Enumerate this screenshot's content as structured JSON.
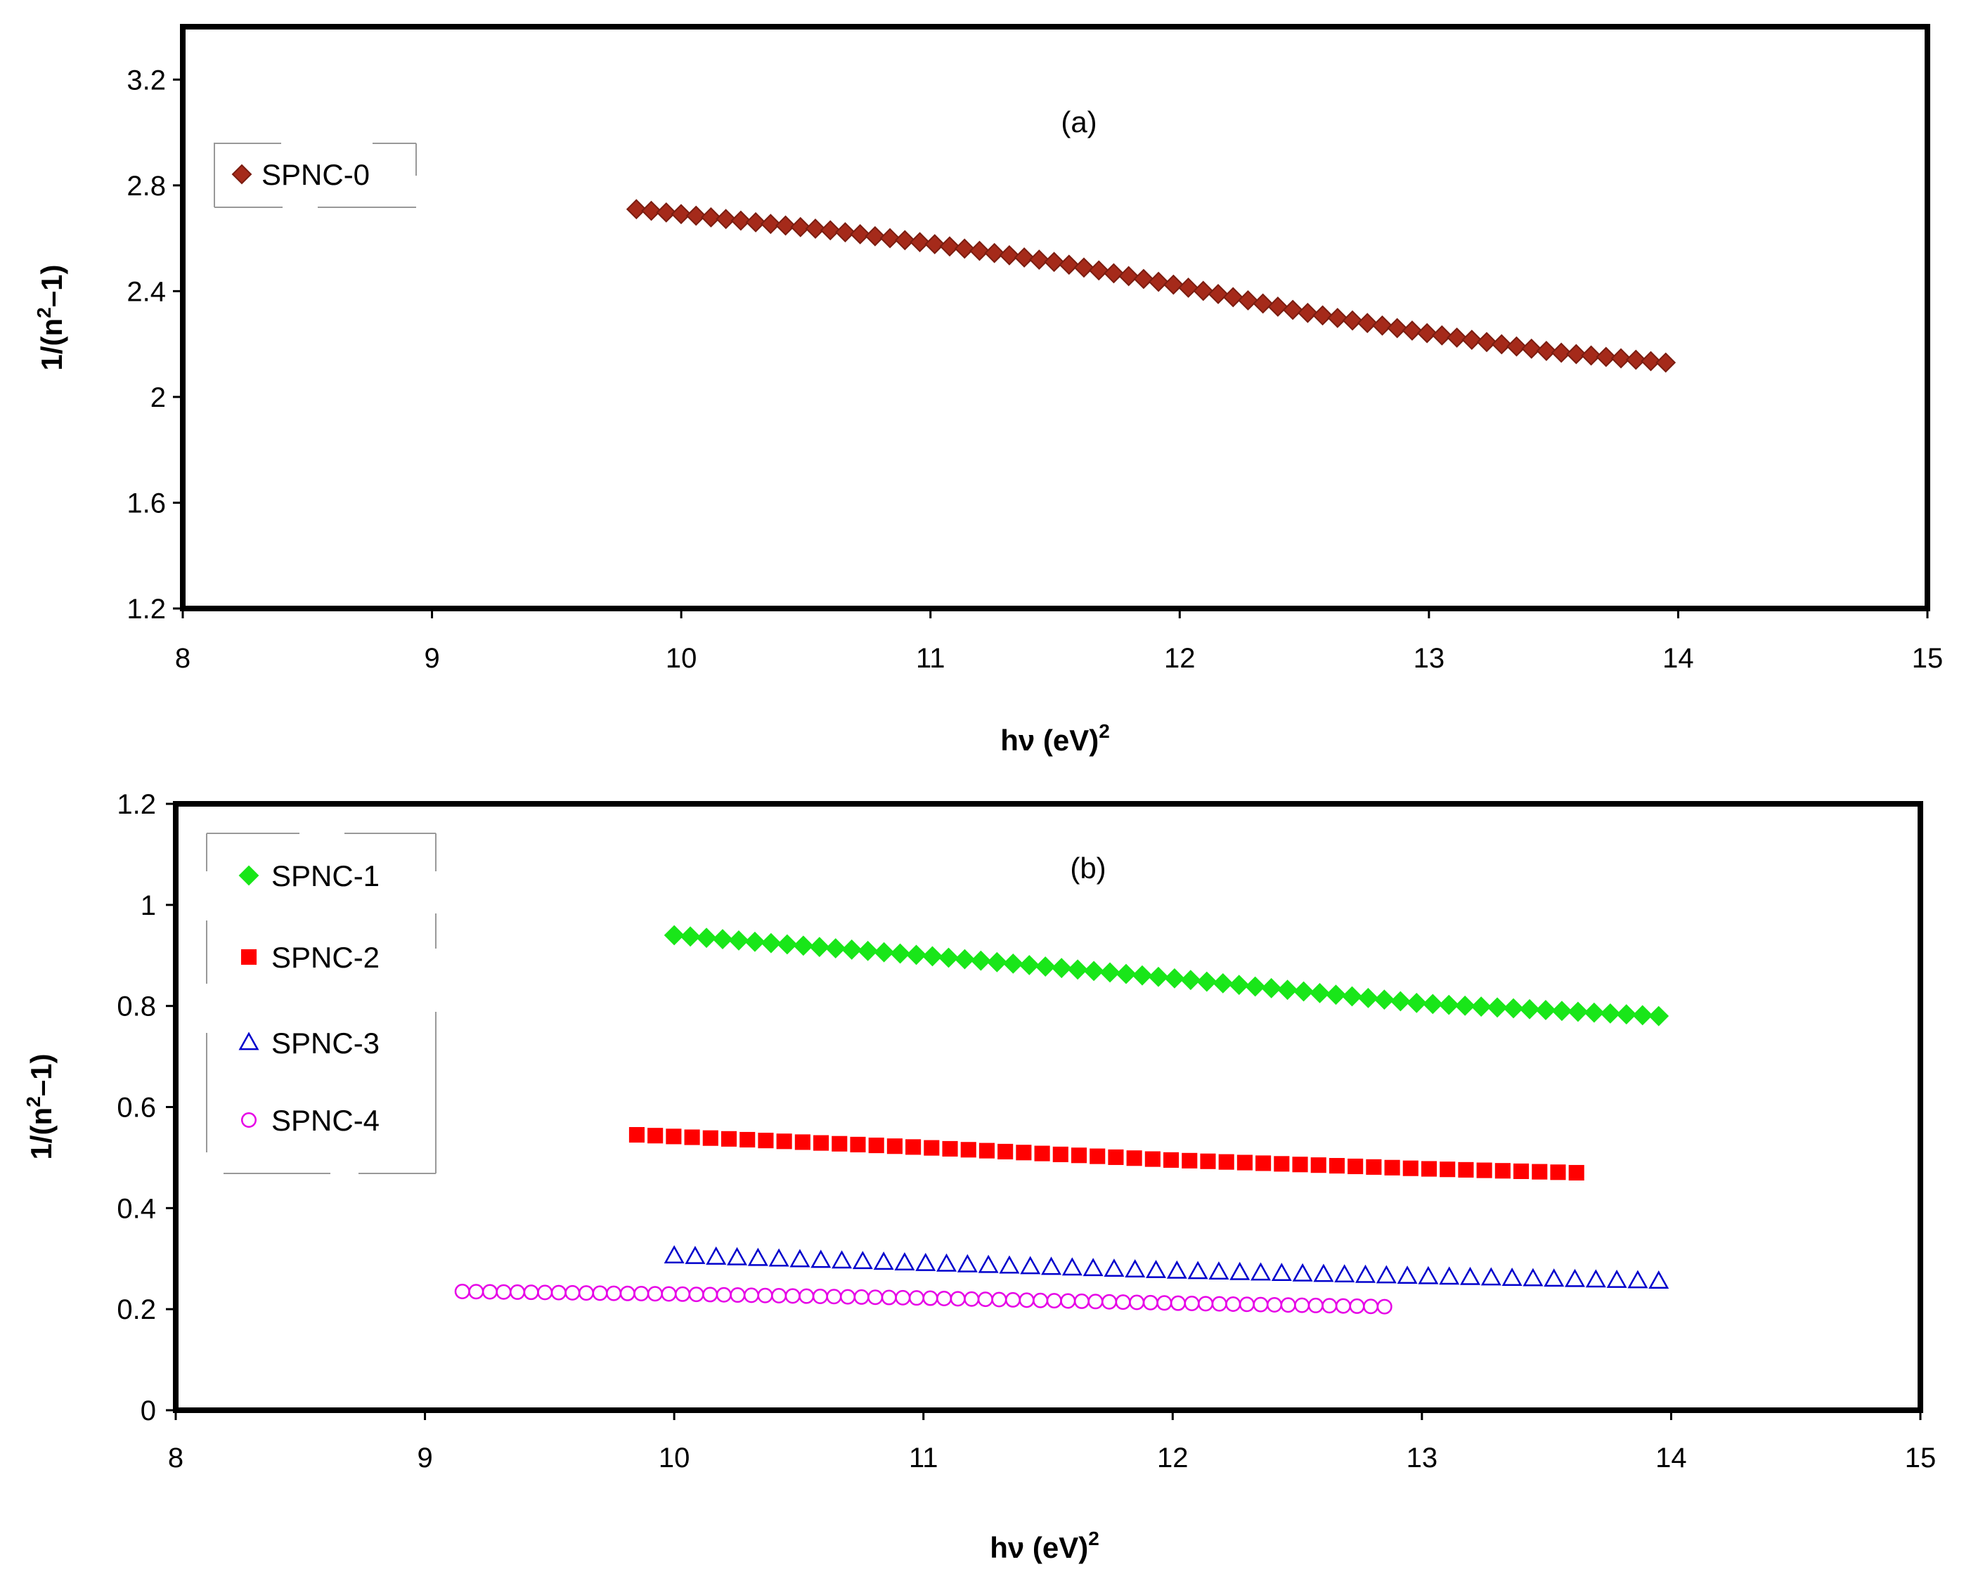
{
  "chart_data": [
    {
      "type": "scatter",
      "panel_label": "(a)",
      "ylabel_prefix": "1/(n",
      "ylabel_sup": "2",
      "ylabel_suffix": "–1)",
      "xlabel_main": "hν  (eV)",
      "xlabel_sup": "2",
      "xlim": [
        8,
        15
      ],
      "ylim": [
        1.2,
        3.4
      ],
      "xticks": [
        "8",
        "9",
        "10",
        "11",
        "12",
        "13",
        "14",
        "15"
      ],
      "yticks": [
        "1.2",
        "1.6",
        "2",
        "2.4",
        "2.8",
        "3.2"
      ],
      "legend_position": "top-left",
      "series": [
        {
          "name": "SPNC-0",
          "marker": "diamond",
          "color": "#a52a1a",
          "edge": "#7a1c10",
          "x_start": 9.82,
          "x_end": 13.95,
          "count": 70,
          "y_points": [
            [
              9.82,
              2.71
            ],
            [
              10.4,
              2.65
            ],
            [
              10.6,
              2.63
            ],
            [
              11.0,
              2.58
            ],
            [
              11.5,
              2.51
            ],
            [
              12.0,
              2.42
            ],
            [
              12.5,
              2.32
            ],
            [
              13.0,
              2.24
            ],
            [
              13.5,
              2.17
            ],
            [
              13.95,
              2.13
            ]
          ]
        }
      ]
    },
    {
      "type": "scatter",
      "panel_label": "(b)",
      "ylabel_prefix": "1/(n",
      "ylabel_sup": "2",
      "ylabel_suffix": "–1)",
      "xlabel_main": "hν  (eV)",
      "xlabel_sup": "2",
      "xlim": [
        8,
        15
      ],
      "ylim": [
        0,
        1.2
      ],
      "xticks": [
        "8",
        "9",
        "10",
        "11",
        "12",
        "13",
        "14",
        "15"
      ],
      "yticks": [
        "0",
        "0.2",
        "0.4",
        "0.6",
        "0.8",
        "1",
        "1.2"
      ],
      "legend_position": "top-left",
      "series": [
        {
          "name": "SPNC-1",
          "marker": "diamond",
          "color": "#19e619",
          "edge": "#19e619",
          "x_start": 10.0,
          "x_end": 13.95,
          "count": 62,
          "y_points": [
            [
              10.0,
              0.94
            ],
            [
              11.0,
              0.9
            ],
            [
              12.0,
              0.855
            ],
            [
              13.0,
              0.805
            ],
            [
              13.95,
              0.78
            ]
          ]
        },
        {
          "name": "SPNC-2",
          "marker": "square",
          "color": "#ff0000",
          "edge": "#ff0000",
          "x_start": 9.85,
          "x_end": 13.62,
          "count": 52,
          "y_points": [
            [
              9.85,
              0.545
            ],
            [
              11.0,
              0.52
            ],
            [
              12.0,
              0.495
            ],
            [
              13.0,
              0.478
            ],
            [
              13.62,
              0.47
            ]
          ]
        },
        {
          "name": "SPNC-3",
          "marker": "triangle",
          "color": "none",
          "edge": "#0000cc",
          "x_start": 10.0,
          "x_end": 13.95,
          "count": 48,
          "y_points": [
            [
              10.0,
              0.305
            ],
            [
              11.0,
              0.29
            ],
            [
              12.0,
              0.275
            ],
            [
              13.0,
              0.264
            ],
            [
              13.95,
              0.255
            ]
          ]
        },
        {
          "name": "SPNC-4",
          "marker": "circle",
          "color": "none",
          "edge": "#e600e6",
          "x_start": 9.15,
          "x_end": 12.85,
          "count": 68,
          "y_points": [
            [
              9.15,
              0.235
            ],
            [
              10.0,
              0.23
            ],
            [
              11.0,
              0.222
            ],
            [
              12.0,
              0.212
            ],
            [
              12.85,
              0.205
            ]
          ]
        }
      ]
    }
  ]
}
